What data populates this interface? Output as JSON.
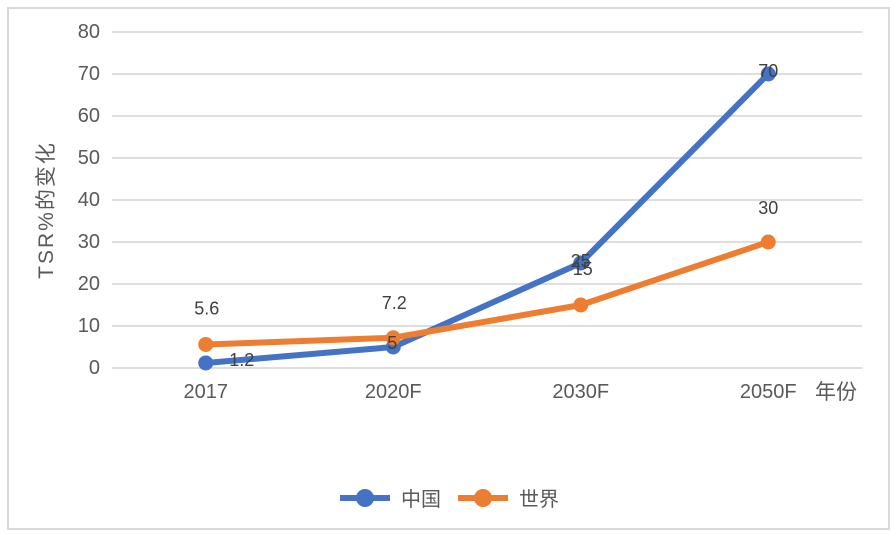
{
  "chart_data": {
    "type": "line",
    "title": "",
    "xlabel": "年份",
    "ylabel": "TSR%的变化",
    "categories": [
      "2017",
      "2020F",
      "2030F",
      "2050F"
    ],
    "series": [
      {
        "name": "中国",
        "color": "#4472C4",
        "values": [
          1.2,
          5,
          25,
          70
        ],
        "labels": [
          "1.2",
          "5",
          "25",
          "70"
        ]
      },
      {
        "name": "世界",
        "color": "#ED7D31",
        "values": [
          5.6,
          7.2,
          15,
          30
        ],
        "labels": [
          "5.6",
          "7.2",
          "15",
          "30"
        ]
      }
    ],
    "ylim": [
      0,
      80
    ],
    "yticks": [
      0,
      10,
      20,
      30,
      40,
      50,
      60,
      70,
      80
    ],
    "grid": true,
    "legend_position": "bottom",
    "label_offsets": [
      [
        [
          36,
          -3
        ],
        [
          -1,
          -4
        ],
        [
          0,
          -2
        ],
        [
          0,
          -3
        ]
      ],
      [
        [
          1,
          -36
        ],
        [
          1,
          -35
        ],
        [
          2,
          -36
        ],
        [
          0,
          -34
        ]
      ]
    ]
  },
  "colors": {
    "background": "#FFFFFF",
    "border": "#D9D9D9",
    "gridline": "#D9D9D9",
    "axis_text": "#595959",
    "data_label": "#404040"
  }
}
